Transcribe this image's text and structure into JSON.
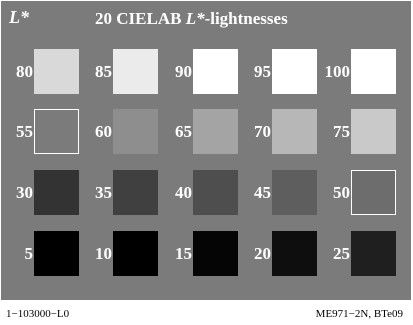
{
  "header": {
    "corner_label": "L*",
    "title_prefix": "20 CIELAB ",
    "title_var": "L*",
    "title_suffix": "-lightnesses"
  },
  "colors": {
    "background_gray": "#7b7b7b",
    "label_text": "#ffffff",
    "outline": "#ffffff"
  },
  "rows": [
    {
      "cells": [
        {
          "label": "80",
          "color": "#d9d9d9",
          "outlined": false
        },
        {
          "label": "85",
          "color": "#ebebeb",
          "outlined": false
        },
        {
          "label": "90",
          "color": "#ffffff",
          "outlined": false
        },
        {
          "label": "95",
          "color": "#ffffff",
          "outlined": false
        },
        {
          "label": "100",
          "color": "#ffffff",
          "outlined": false
        }
      ]
    },
    {
      "cells": [
        {
          "label": "55",
          "color": "#7b7b7b",
          "outlined": true
        },
        {
          "label": "60",
          "color": "#8e8e8e",
          "outlined": false
        },
        {
          "label": "65",
          "color": "#a4a4a4",
          "outlined": false
        },
        {
          "label": "70",
          "color": "#b7b7b7",
          "outlined": false
        },
        {
          "label": "75",
          "color": "#c9c9c9",
          "outlined": false
        }
      ]
    },
    {
      "cells": [
        {
          "label": "30",
          "color": "#333333",
          "outlined": false
        },
        {
          "label": "35",
          "color": "#404040",
          "outlined": false
        },
        {
          "label": "40",
          "color": "#4e4e4e",
          "outlined": false
        },
        {
          "label": "45",
          "color": "#5e5e5e",
          "outlined": false
        },
        {
          "label": "50",
          "color": "#6d6d6d",
          "outlined": true
        }
      ]
    },
    {
      "cells": [
        {
          "label": "5",
          "color": "#000000",
          "outlined": false
        },
        {
          "label": "10",
          "color": "#000000",
          "outlined": false
        },
        {
          "label": "15",
          "color": "#050505",
          "outlined": false
        },
        {
          "label": "20",
          "color": "#0e0e0e",
          "outlined": false
        },
        {
          "label": "25",
          "color": "#1f1f1f",
          "outlined": false
        }
      ]
    }
  ],
  "footer": {
    "left": "1−103000−L0",
    "right": "ME971−2N, BTe09"
  }
}
